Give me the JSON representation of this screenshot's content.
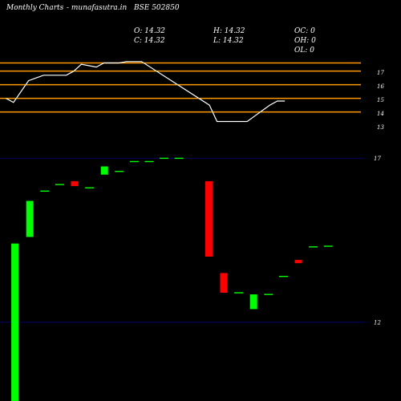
{
  "header": {
    "site": "Monthly Charts",
    "source": "- munafasutra.in",
    "symbol": "BSE 502850",
    "open": "O: 14.32",
    "close": "C: 14.32",
    "high": "H: 14.32",
    "low": "L: 14.32",
    "oc": "OC: 0",
    "oh": "OH: 0",
    "ol": "OL: 0"
  },
  "colors": {
    "background": "#000000",
    "line": "#ffffff",
    "level": "#ff9900",
    "up": "#00ff00",
    "down": "#ff0000",
    "doji": "#00ff00",
    "guide": "#000080"
  },
  "chart_data": [
    {
      "type": "line",
      "y_ticks": [
        "17",
        "16",
        "15",
        "14",
        "13"
      ],
      "tick_values": [
        17,
        16,
        15,
        14,
        13
      ],
      "level_values": [
        17.7,
        17.1,
        16.1,
        15.1,
        14.1
      ],
      "ylim": [
        12.9,
        18.2
      ],
      "x": [
        0,
        1,
        2,
        3,
        4,
        5,
        6,
        7,
        8,
        9,
        10,
        11,
        12,
        13,
        14,
        15,
        16,
        17,
        18,
        19,
        20,
        21,
        22,
        23,
        24,
        25,
        26,
        27,
        28,
        29,
        30,
        31,
        32,
        33,
        34,
        35,
        36,
        37,
        38,
        39,
        40,
        41
      ],
      "values": [
        null,
        15.1,
        14.8,
        null,
        16.4,
        16.6,
        16.8,
        16.8,
        16.8,
        16.8,
        17.1,
        17.6,
        17.5,
        17.4,
        17.7,
        17.7,
        17.7,
        17.8,
        17.8,
        17.8,
        null,
        null,
        null,
        null,
        null,
        null,
        null,
        null,
        14.6,
        13.4,
        13.4,
        13.4,
        13.4,
        13.4,
        13.8,
        14.2,
        14.6,
        14.9,
        14.9,
        null,
        null,
        null
      ]
    },
    {
      "type": "candlestick",
      "y_ticks": [
        "17",
        "12"
      ],
      "tick_values": [
        17,
        12
      ],
      "ylim": [
        9.6,
        17.3
      ],
      "candles": [
        {
          "x": 1,
          "open": 9.6,
          "close": 14.4
        },
        {
          "x": 2,
          "open": 14.6,
          "close": 15.7
        },
        {
          "x": 3,
          "open": 16.0,
          "close": 16.0
        },
        {
          "x": 4,
          "open": 16.2,
          "close": 16.2
        },
        {
          "x": 5,
          "open": 16.3,
          "close": 16.15
        },
        {
          "x": 6,
          "open": 16.1,
          "close": 16.1
        },
        {
          "x": 7,
          "open": 16.5,
          "close": 16.75
        },
        {
          "x": 8,
          "open": 16.6,
          "close": 16.6
        },
        {
          "x": 9,
          "open": 16.9,
          "close": 16.9
        },
        {
          "x": 10,
          "open": 16.9,
          "close": 16.9
        },
        {
          "x": 11,
          "open": 17.0,
          "close": 17.0
        },
        {
          "x": 12,
          "open": 17.0,
          "close": 17.0
        },
        {
          "x": 14,
          "open": 16.3,
          "close": 14.0
        },
        {
          "x": 15,
          "open": 13.5,
          "close": 12.9
        },
        {
          "x": 16,
          "open": 12.9,
          "close": 12.9
        },
        {
          "x": 17,
          "open": 12.4,
          "close": 12.85
        },
        {
          "x": 18,
          "open": 12.85,
          "close": 12.85
        },
        {
          "x": 19,
          "open": 13.4,
          "close": 13.4
        },
        {
          "x": 20,
          "open": 13.9,
          "close": 13.8
        },
        {
          "x": 21,
          "open": 14.3,
          "close": 14.3
        },
        {
          "x": 22,
          "open": 14.32,
          "close": 14.32
        }
      ]
    }
  ]
}
